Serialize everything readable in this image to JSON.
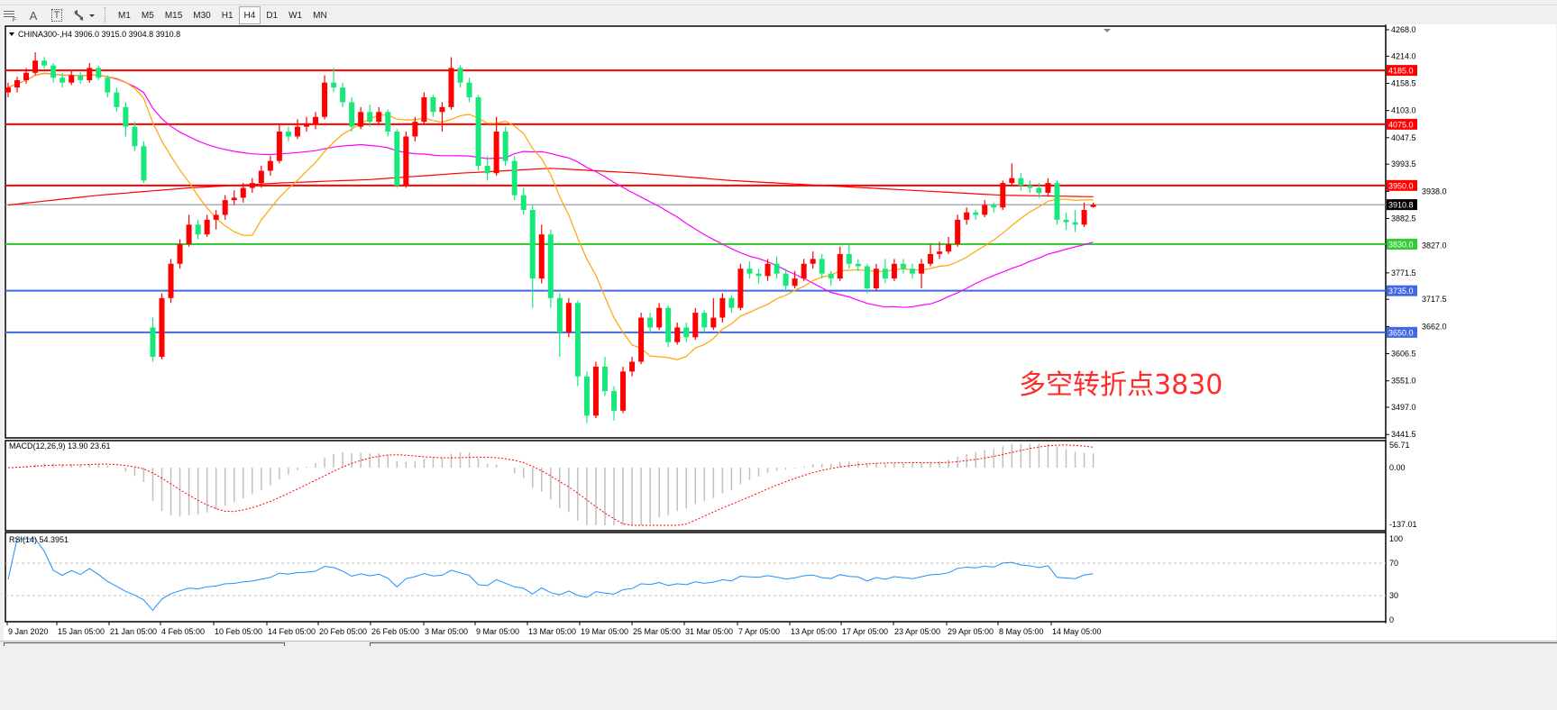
{
  "toolbar": {
    "icons": [
      "grid-icon",
      "text-a-icon",
      "text-label-icon",
      "arrows-icon"
    ],
    "text_a": "A",
    "text_t": "T",
    "periods": [
      "M1",
      "M5",
      "M15",
      "M30",
      "H1",
      "H4",
      "D1",
      "W1",
      "MN"
    ],
    "active_period": "H4"
  },
  "chart": {
    "header": "CHINA300-,H4  3906.0 3915.0 3904.8 3910.8",
    "annotation": "多空转折点3830"
  },
  "colors": {
    "bull": "#ff0000",
    "bear": "#18e87c",
    "ma_fast": "#ffa500",
    "ma_mid": "#ff00ff",
    "ma_long": "#ff0000",
    "resistance": "#ff0000",
    "pivot": "#33cc33",
    "support": "#4169e1",
    "current": "#778899",
    "macd_hist": "#c0c0c0",
    "macd_signal": "#ff0000",
    "rsi": "#1e90ff"
  },
  "chart_data": {
    "type": "candlestick",
    "symbol": "CHINA300-",
    "timeframe": "H4",
    "ylim": [
      3441.5,
      4268.0
    ],
    "price_ticks": [
      "4268.0",
      "4214.0",
      "4158.5",
      "4103.0",
      "4047.5",
      "3993.5",
      "3938.0",
      "3882.5",
      "3827.0",
      "3771.5",
      "3717.5",
      "3662.0",
      "3606.5",
      "3551.0",
      "3497.0",
      "3441.5"
    ],
    "date_labels": [
      "9 Jan 2020",
      "15 Jan 05:00",
      "21 Jan 05:00",
      "4 Feb 05:00",
      "10 Feb 05:00",
      "14 Feb 05:00",
      "20 Feb 05:00",
      "26 Feb 05:00",
      "3 Mar 05:00",
      "9 Mar 05:00",
      "13 Mar 05:00",
      "19 Mar 05:00",
      "25 Mar 05:00",
      "31 Mar 05:00",
      "7 Apr 05:00",
      "13 Apr 05:00",
      "17 Apr 05:00",
      "23 Apr 05:00",
      "29 Apr 05:00",
      "8 May 05:00",
      "14 May 05:00"
    ],
    "levels": [
      {
        "price": 4185.0,
        "label": "4185.0",
        "kind": "resistance"
      },
      {
        "price": 4075.0,
        "label": "4075.0",
        "kind": "resistance"
      },
      {
        "price": 3950.0,
        "label": "3950.0",
        "kind": "resistance"
      },
      {
        "price": 3830.0,
        "label": "3830.0",
        "kind": "pivot"
      },
      {
        "price": 3735.0,
        "label": "3735.0",
        "kind": "support"
      },
      {
        "price": 3650.0,
        "label": "3650.0",
        "kind": "support"
      }
    ],
    "current_price": {
      "price": 3910.8,
      "label": "3910.8"
    },
    "ma_long": [
      3910,
      3930,
      3945,
      3955,
      3962,
      3975,
      3985,
      3975,
      3960,
      3950,
      3940,
      3930,
      3927
    ],
    "ohlc": [
      [
        4140,
        4160,
        4130,
        4150
      ],
      [
        4150,
        4172,
        4140,
        4165
      ],
      [
        4165,
        4190,
        4158,
        4180
      ],
      [
        4180,
        4222,
        4175,
        4205
      ],
      [
        4205,
        4212,
        4188,
        4195
      ],
      [
        4195,
        4200,
        4160,
        4170
      ],
      [
        4170,
        4180,
        4150,
        4160
      ],
      [
        4160,
        4185,
        4155,
        4175
      ],
      [
        4175,
        4182,
        4158,
        4165
      ],
      [
        4165,
        4200,
        4160,
        4190
      ],
      [
        4190,
        4195,
        4165,
        4170
      ],
      [
        4170,
        4175,
        4130,
        4140
      ],
      [
        4140,
        4150,
        4100,
        4110
      ],
      [
        4110,
        4120,
        4050,
        4070
      ],
      [
        4070,
        4080,
        4020,
        4030
      ],
      [
        4030,
        4040,
        3955,
        3960
      ],
      [
        3660,
        3680,
        3590,
        3600
      ],
      [
        3600,
        3730,
        3595,
        3720
      ],
      [
        3720,
        3800,
        3710,
        3790
      ],
      [
        3790,
        3840,
        3780,
        3830
      ],
      [
        3830,
        3890,
        3825,
        3870
      ],
      [
        3870,
        3880,
        3840,
        3850
      ],
      [
        3850,
        3890,
        3845,
        3880
      ],
      [
        3880,
        3900,
        3860,
        3890
      ],
      [
        3890,
        3930,
        3880,
        3920
      ],
      [
        3920,
        3940,
        3910,
        3925
      ],
      [
        3925,
        3955,
        3915,
        3945
      ],
      [
        3945,
        3965,
        3935,
        3955
      ],
      [
        3955,
        3990,
        3945,
        3980
      ],
      [
        3980,
        4010,
        3970,
        4000
      ],
      [
        4000,
        4075,
        3995,
        4060
      ],
      [
        4060,
        4070,
        4040,
        4050
      ],
      [
        4050,
        4085,
        4045,
        4070
      ],
      [
        4070,
        4090,
        4060,
        4075
      ],
      [
        4075,
        4100,
        4065,
        4090
      ],
      [
        4090,
        4175,
        4085,
        4160
      ],
      [
        4160,
        4190,
        4140,
        4150
      ],
      [
        4150,
        4160,
        4110,
        4120
      ],
      [
        4120,
        4130,
        4060,
        4070
      ],
      [
        4070,
        4110,
        4065,
        4100
      ],
      [
        4100,
        4115,
        4070,
        4080
      ],
      [
        4080,
        4110,
        4075,
        4100
      ],
      [
        4100,
        4105,
        4050,
        4060
      ],
      [
        4060,
        4065,
        3945,
        3950
      ],
      [
        3950,
        4060,
        3945,
        4050
      ],
      [
        4050,
        4090,
        4040,
        4080
      ],
      [
        4080,
        4140,
        4075,
        4130
      ],
      [
        4130,
        4135,
        4090,
        4100
      ],
      [
        4100,
        4120,
        4060,
        4110
      ],
      [
        4110,
        4212,
        4105,
        4190
      ],
      [
        4190,
        4195,
        4150,
        4160
      ],
      [
        4160,
        4170,
        4120,
        4130
      ],
      [
        4130,
        4135,
        3980,
        3990
      ],
      [
        3990,
        4010,
        3960,
        3975
      ],
      [
        3975,
        4090,
        3970,
        4060
      ],
      [
        4060,
        4070,
        3990,
        4000
      ],
      [
        4000,
        4010,
        3920,
        3930
      ],
      [
        3930,
        3945,
        3890,
        3900
      ],
      [
        3900,
        3910,
        3700,
        3760
      ],
      [
        3760,
        3870,
        3750,
        3850
      ],
      [
        3850,
        3860,
        3700,
        3720
      ],
      [
        3720,
        3730,
        3600,
        3650
      ],
      [
        3650,
        3720,
        3640,
        3710
      ],
      [
        3710,
        3715,
        3540,
        3560
      ],
      [
        3560,
        3570,
        3465,
        3480
      ],
      [
        3480,
        3590,
        3475,
        3580
      ],
      [
        3580,
        3600,
        3520,
        3530
      ],
      [
        3530,
        3540,
        3470,
        3490
      ],
      [
        3490,
        3580,
        3485,
        3570
      ],
      [
        3570,
        3600,
        3560,
        3590
      ],
      [
        3590,
        3690,
        3585,
        3680
      ],
      [
        3680,
        3690,
        3650,
        3660
      ],
      [
        3660,
        3710,
        3655,
        3700
      ],
      [
        3700,
        3705,
        3620,
        3630
      ],
      [
        3630,
        3670,
        3625,
        3660
      ],
      [
        3660,
        3670,
        3630,
        3640
      ],
      [
        3640,
        3700,
        3635,
        3690
      ],
      [
        3690,
        3695,
        3650,
        3660
      ],
      [
        3660,
        3720,
        3655,
        3680
      ],
      [
        3680,
        3730,
        3670,
        3720
      ],
      [
        3720,
        3725,
        3690,
        3700
      ],
      [
        3700,
        3790,
        3695,
        3780
      ],
      [
        3780,
        3795,
        3760,
        3770
      ],
      [
        3770,
        3780,
        3750,
        3765
      ],
      [
        3765,
        3800,
        3755,
        3790
      ],
      [
        3790,
        3805,
        3760,
        3770
      ],
      [
        3770,
        3780,
        3735,
        3745
      ],
      [
        3745,
        3775,
        3740,
        3760
      ],
      [
        3760,
        3800,
        3755,
        3790
      ],
      [
        3790,
        3815,
        3780,
        3800
      ],
      [
        3800,
        3810,
        3760,
        3770
      ],
      [
        3770,
        3775,
        3745,
        3760
      ],
      [
        3760,
        3825,
        3755,
        3810
      ],
      [
        3810,
        3830,
        3780,
        3790
      ],
      [
        3790,
        3800,
        3775,
        3785
      ],
      [
        3785,
        3790,
        3730,
        3740
      ],
      [
        3740,
        3790,
        3735,
        3780
      ],
      [
        3780,
        3800,
        3750,
        3760
      ],
      [
        3760,
        3800,
        3755,
        3790
      ],
      [
        3790,
        3800,
        3770,
        3780
      ],
      [
        3780,
        3790,
        3760,
        3770
      ],
      [
        3770,
        3800,
        3740,
        3790
      ],
      [
        3790,
        3830,
        3785,
        3810
      ],
      [
        3810,
        3835,
        3800,
        3815
      ],
      [
        3815,
        3845,
        3810,
        3830
      ],
      [
        3830,
        3890,
        3825,
        3880
      ],
      [
        3880,
        3905,
        3870,
        3895
      ],
      [
        3895,
        3900,
        3880,
        3890
      ],
      [
        3890,
        3920,
        3885,
        3910
      ],
      [
        3910,
        3915,
        3895,
        3905
      ],
      [
        3905,
        3960,
        3900,
        3955
      ],
      [
        3955,
        3995,
        3950,
        3965
      ],
      [
        3965,
        3975,
        3940,
        3950
      ],
      [
        3950,
        3960,
        3935,
        3945
      ],
      [
        3945,
        3955,
        3925,
        3935
      ],
      [
        3935,
        3965,
        3930,
        3955
      ],
      [
        3955,
        3960,
        3870,
        3880
      ],
      [
        3880,
        3895,
        3860,
        3875
      ],
      [
        3875,
        3900,
        3855,
        3870
      ],
      [
        3870,
        3915,
        3865,
        3900
      ],
      [
        3906.0,
        3915.0,
        3904.8,
        3910.8
      ]
    ],
    "macd": {
      "label": "MACD(12,26,9) 13.90 23.61",
      "ticks": [
        "56.71",
        "0.00",
        "-137.01"
      ],
      "ylim": [
        -137.01,
        56.71
      ]
    },
    "rsi": {
      "label": "RSI(14) 54.3951",
      "ticks": [
        "100",
        "70",
        "30",
        "0"
      ],
      "levels": [
        70,
        30
      ],
      "ylim": [
        0,
        100
      ]
    }
  }
}
